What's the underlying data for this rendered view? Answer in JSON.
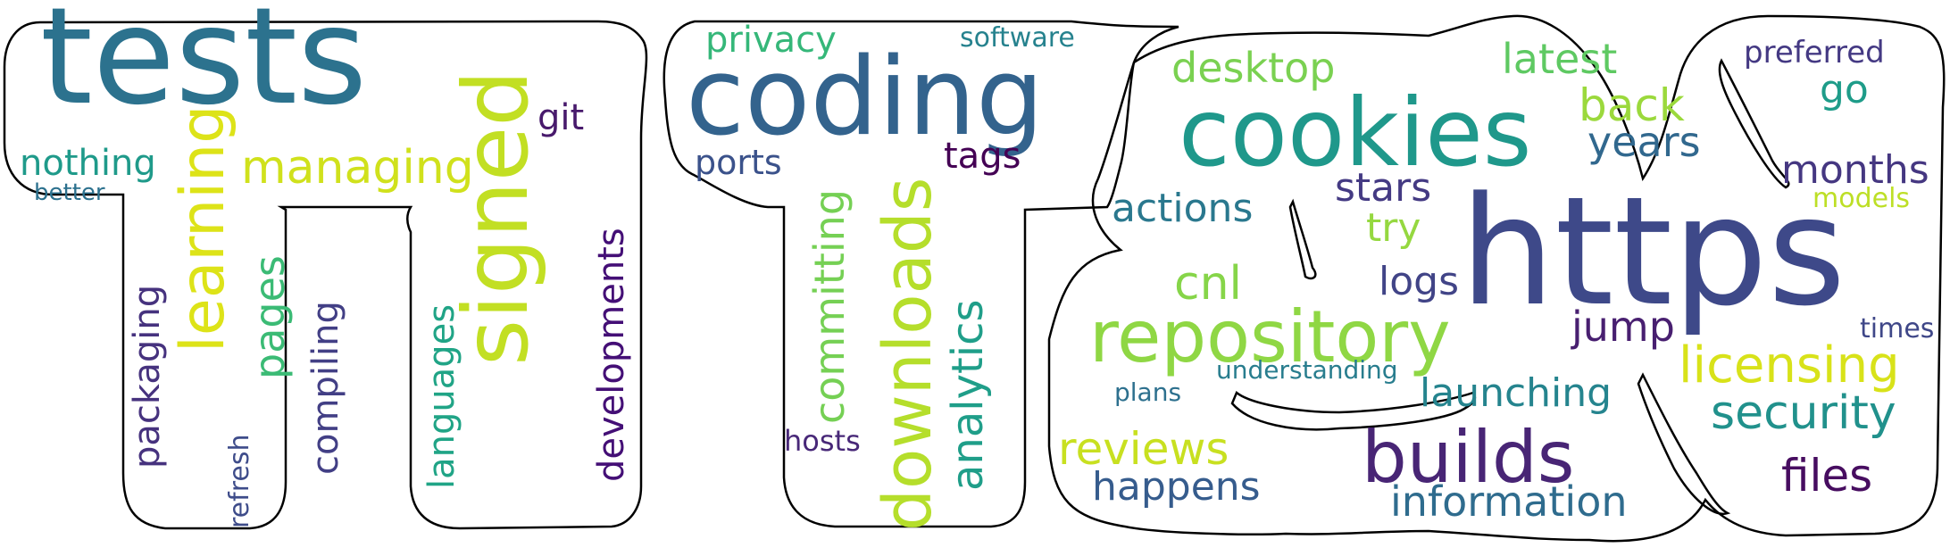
{
  "wordcloud": {
    "outline_color": "#000000",
    "background": "#ffffff",
    "shape_text": "TTR",
    "words": [
      {
        "text": "tests",
        "color": "#2c728e"
      },
      {
        "text": "signed",
        "color": "#c2df23"
      },
      {
        "text": "learning",
        "color": "#dde318"
      },
      {
        "text": "managing",
        "color": "#d0e11c"
      },
      {
        "text": "nothing",
        "color": "#1f9a8a"
      },
      {
        "text": "better",
        "color": "#2c718e"
      },
      {
        "text": "git",
        "color": "#481a6c"
      },
      {
        "text": "pages",
        "color": "#3bbb75"
      },
      {
        "text": "compiling",
        "color": "#423f85"
      },
      {
        "text": "packaging",
        "color": "#46327e"
      },
      {
        "text": "refresh",
        "color": "#3e4c8a"
      },
      {
        "text": "languages",
        "color": "#20a486"
      },
      {
        "text": "developments",
        "color": "#440f76"
      },
      {
        "text": "coding",
        "color": "#33638d"
      },
      {
        "text": "privacy",
        "color": "#35b779"
      },
      {
        "text": "software",
        "color": "#26828e"
      },
      {
        "text": "ports",
        "color": "#3b528b"
      },
      {
        "text": "committing",
        "color": "#75d054"
      },
      {
        "text": "downloads",
        "color": "#b5de2b"
      },
      {
        "text": "analytics",
        "color": "#1f9e89"
      },
      {
        "text": "tags",
        "color": "#440154"
      },
      {
        "text": "hosts",
        "color": "#482878"
      },
      {
        "text": "cookies",
        "color": "#1f988b"
      },
      {
        "text": "desktop",
        "color": "#7ad151"
      },
      {
        "text": "latest",
        "color": "#5ec962"
      },
      {
        "text": "back",
        "color": "#9bd93c"
      },
      {
        "text": "years",
        "color": "#31688e"
      },
      {
        "text": "preferred",
        "color": "#443983"
      },
      {
        "text": "go",
        "color": "#1e9c89"
      },
      {
        "text": "months",
        "color": "#453781"
      },
      {
        "text": "models",
        "color": "#bddf26"
      },
      {
        "text": "https",
        "color": "#3e4989"
      },
      {
        "text": "stars",
        "color": "#443a83"
      },
      {
        "text": "try",
        "color": "#95d840"
      },
      {
        "text": "actions",
        "color": "#2a788e"
      },
      {
        "text": "cnl",
        "color": "#86d549"
      },
      {
        "text": "logs",
        "color": "#414487"
      },
      {
        "text": "repository",
        "color": "#8fd744"
      },
      {
        "text": "jump",
        "color": "#481f70"
      },
      {
        "text": "times",
        "color": "#3f4788"
      },
      {
        "text": "licensing",
        "color": "#d8e219"
      },
      {
        "text": "understanding",
        "color": "#287d8e"
      },
      {
        "text": "plans",
        "color": "#2d708e"
      },
      {
        "text": "launching",
        "color": "#25848e"
      },
      {
        "text": "security",
        "color": "#21918c"
      },
      {
        "text": "reviews",
        "color": "#c8e020"
      },
      {
        "text": "builds",
        "color": "#482575"
      },
      {
        "text": "happens",
        "color": "#365c8d"
      },
      {
        "text": "files",
        "color": "#470d60"
      },
      {
        "text": "information",
        "color": "#2f6c8e"
      }
    ]
  }
}
